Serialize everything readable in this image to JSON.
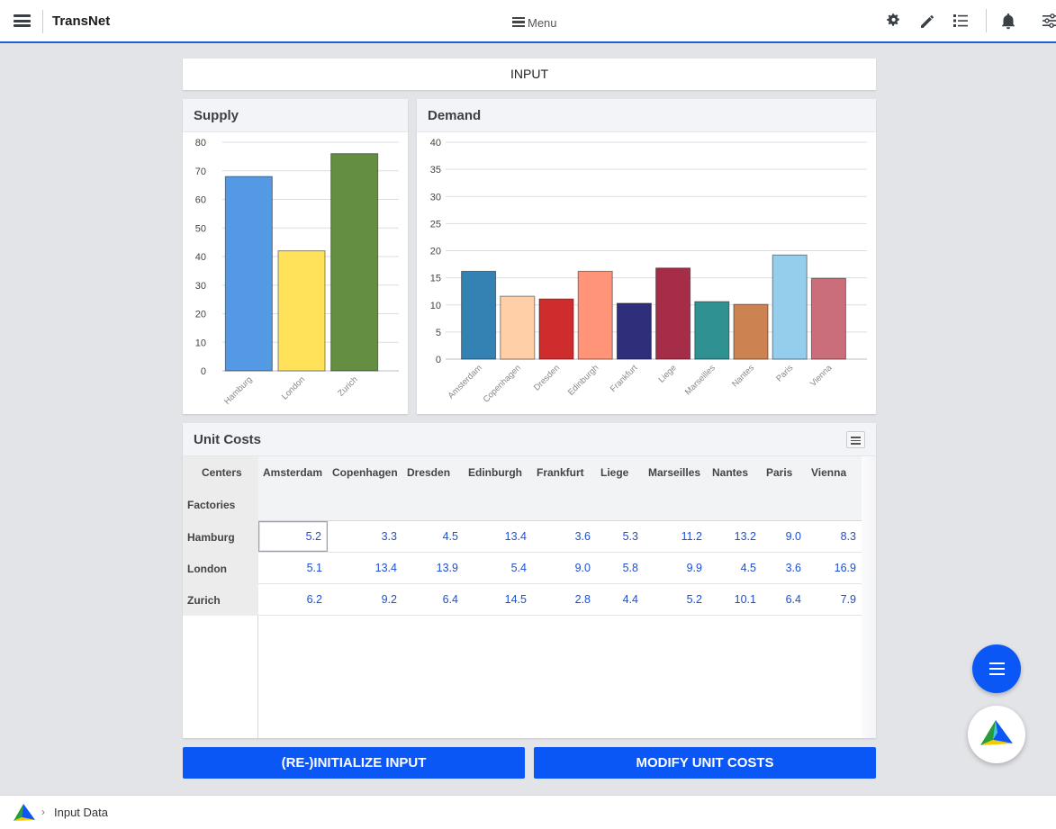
{
  "app": {
    "title": "TransNet",
    "menu_label": "Menu"
  },
  "header_icons": [
    "gear-icon",
    "pencil-icon",
    "list-icon",
    "bell-icon",
    "sliders-icon"
  ],
  "page": {
    "section_title": "INPUT"
  },
  "supply": {
    "title": "Supply",
    "chart_data": {
      "type": "bar",
      "categories": [
        "Hamburg",
        "London",
        "Zurich"
      ],
      "values": [
        68,
        42,
        76
      ],
      "colors": [
        "#5499e4",
        "#ffe25a",
        "#648f40"
      ],
      "ylim": [
        0,
        80
      ],
      "yticks": [
        0,
        10,
        20,
        30,
        40,
        50,
        60,
        70,
        80
      ]
    }
  },
  "demand": {
    "title": "Demand",
    "chart_data": {
      "type": "bar",
      "categories": [
        "Amsterdam",
        "Copenhagen",
        "Dresden",
        "Edinburgh",
        "Frankfurt",
        "Liege",
        "Marseilles",
        "Nantes",
        "Paris",
        "Vienna"
      ],
      "values": [
        16.2,
        11.6,
        11.1,
        16.2,
        10.3,
        16.8,
        10.6,
        10.1,
        19.2,
        14.9
      ],
      "colors": [
        "#3481b4",
        "#ffcfa8",
        "#cf2c2e",
        "#ff9478",
        "#2f2e7b",
        "#a52d48",
        "#2f9191",
        "#cc8351",
        "#94ceec",
        "#c96e7a"
      ],
      "ylim": [
        0,
        40
      ],
      "yticks": [
        0,
        5,
        10,
        15,
        20,
        25,
        30,
        35,
        40
      ]
    }
  },
  "unit_costs": {
    "title": "Unit Costs",
    "centers_label": "Centers",
    "factories_label": "Factories",
    "columns": [
      "Amsterdam",
      "Copenhagen",
      "Dresden",
      "Edinburgh",
      "Frankfurt",
      "Liege",
      "Marseilles",
      "Nantes",
      "Paris",
      "Vienna"
    ],
    "rows": [
      {
        "factory": "Hamburg",
        "values": [
          "5.2",
          "3.3",
          "4.5",
          "13.4",
          "3.6",
          "5.3",
          "11.2",
          "13.2",
          "9.0",
          "8.3"
        ]
      },
      {
        "factory": "London",
        "values": [
          "5.1",
          "13.4",
          "13.9",
          "5.4",
          "9.0",
          "5.8",
          "9.9",
          "4.5",
          "3.6",
          "16.9"
        ]
      },
      {
        "factory": "Zurich",
        "values": [
          "6.2",
          "9.2",
          "6.4",
          "14.5",
          "2.8",
          "4.4",
          "5.2",
          "10.1",
          "6.4",
          "7.9"
        ]
      }
    ]
  },
  "actions": {
    "reinit_label": "(RE-)INITIALIZE INPUT",
    "modify_label": "MODIFY UNIT COSTS"
  },
  "footer": {
    "breadcrumb": "Input Data"
  }
}
